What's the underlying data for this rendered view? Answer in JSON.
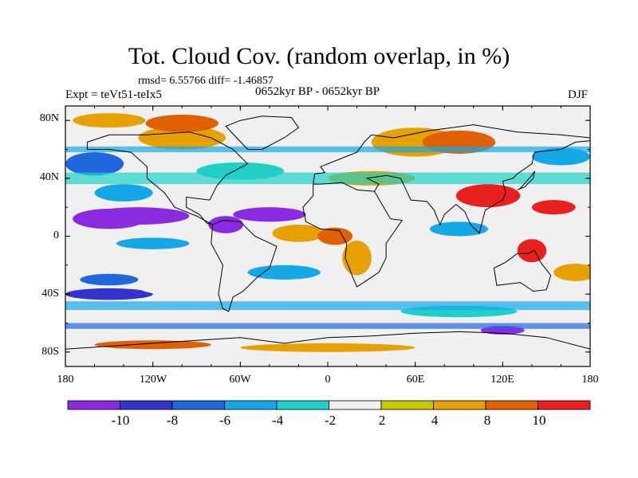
{
  "title": "Tot. Cloud Cov. (random overlap, in %)",
  "stats": "rmsd= 6.55766 diff= -1.46857",
  "experiment": "Expt = teVt51-teIx5",
  "period": "0652kyr BP - 0652kyr BP",
  "season": "DJF",
  "lat_labels": [
    "80N",
    "40N",
    "0",
    "40S",
    "80S"
  ],
  "lon_labels": [
    "180",
    "120W",
    "60W",
    "0",
    "60E",
    "120E",
    "180"
  ],
  "colorbar": {
    "labels": [
      "-10",
      "-8",
      "-6",
      "-4",
      "-2",
      "2",
      "4",
      "8",
      "10"
    ],
    "colors": [
      "#8a2be2",
      "#3333cc",
      "#2266dd",
      "#15a8e6",
      "#20d0c8",
      "#f0f0f0",
      "#c8c800",
      "#e6a000",
      "#e06000",
      "#e82020"
    ]
  }
}
